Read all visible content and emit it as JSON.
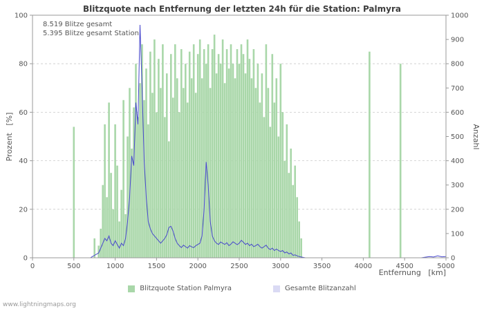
{
  "watermark": "www.lightningmaps.org",
  "colors": {
    "bar": "#a9d7a9",
    "line": "#4545cc",
    "line_legend": "#dadaf4",
    "grid": "#c9c9c9",
    "frame": "#999999",
    "text": "#555555",
    "title": "#3d3d3d"
  },
  "chart_data": {
    "type": "bar",
    "title": "Blitzquote nach Entfernung der letzten 24h für die Station: Palmyra",
    "annotations": [
      "8.519 Blitze gesamt",
      "5.395 Blitze gesamt Station"
    ],
    "xlabel": "Entfernung   [km]",
    "ylabel_left": "Prozent   [%]",
    "ylabel_right": "Anzahl",
    "xlim": [
      0,
      5000
    ],
    "ylim_left": [
      0,
      100
    ],
    "ylim_right": [
      0,
      1000
    ],
    "x_ticks": [
      0,
      500,
      1000,
      1500,
      2000,
      2500,
      3000,
      3500,
      4000,
      4500,
      5000
    ],
    "y_left_ticks": [
      0,
      20,
      40,
      60,
      80,
      100
    ],
    "y_right_ticks": [
      0,
      100,
      200,
      300,
      400,
      500,
      600,
      700,
      800,
      900,
      1000
    ],
    "grid": true,
    "legend_position": "bottom",
    "x": [
      0,
      200,
      400,
      475,
      500,
      525,
      700,
      725,
      750,
      775,
      800,
      825,
      850,
      875,
      900,
      925,
      950,
      975,
      1000,
      1025,
      1050,
      1075,
      1100,
      1125,
      1150,
      1175,
      1200,
      1225,
      1250,
      1275,
      1300,
      1325,
      1350,
      1375,
      1400,
      1425,
      1450,
      1475,
      1500,
      1525,
      1550,
      1575,
      1600,
      1625,
      1650,
      1675,
      1700,
      1725,
      1750,
      1775,
      1800,
      1825,
      1850,
      1875,
      1900,
      1925,
      1950,
      1975,
      2000,
      2025,
      2050,
      2075,
      2100,
      2125,
      2150,
      2175,
      2200,
      2225,
      2250,
      2275,
      2300,
      2325,
      2350,
      2375,
      2400,
      2425,
      2450,
      2475,
      2500,
      2525,
      2550,
      2575,
      2600,
      2625,
      2650,
      2675,
      2700,
      2725,
      2750,
      2775,
      2800,
      2825,
      2850,
      2875,
      2900,
      2925,
      2950,
      2975,
      3000,
      3025,
      3050,
      3075,
      3100,
      3125,
      3150,
      3175,
      3200,
      3225,
      3250,
      3300,
      3500,
      3750,
      4000,
      4050,
      4075,
      4100,
      4400,
      4450,
      4475,
      4700,
      4800,
      4850,
      4900,
      4950,
      5000
    ],
    "series": [
      {
        "name": "Blitzquote Station Palmyra",
        "type": "bar",
        "axis": "left",
        "values": [
          0,
          0,
          0,
          0,
          54,
          0,
          0,
          0,
          8,
          0,
          5,
          12,
          30,
          55,
          25,
          64,
          35,
          20,
          55,
          38,
          15,
          28,
          65,
          18,
          50,
          70,
          45,
          62,
          80,
          58,
          72,
          88,
          65,
          78,
          55,
          85,
          68,
          90,
          60,
          82,
          70,
          88,
          58,
          76,
          48,
          84,
          66,
          88,
          74,
          60,
          86,
          70,
          80,
          64,
          85,
          74,
          88,
          68,
          84,
          90,
          74,
          86,
          80,
          88,
          70,
          86,
          92,
          76,
          84,
          80,
          90,
          72,
          86,
          78,
          88,
          80,
          74,
          86,
          80,
          88,
          84,
          76,
          90,
          82,
          74,
          86,
          70,
          80,
          64,
          76,
          58,
          88,
          70,
          54,
          84,
          64,
          74,
          50,
          80,
          60,
          40,
          55,
          35,
          45,
          30,
          38,
          25,
          15,
          8,
          0,
          0,
          0,
          0,
          0,
          85,
          0,
          0,
          80,
          0,
          0,
          0,
          0,
          0,
          0,
          0
        ]
      },
      {
        "name": "Gesamte Blitzanzahl",
        "type": "line",
        "axis": "right",
        "values": [
          0,
          0,
          0,
          0,
          0,
          0,
          0,
          5,
          10,
          15,
          20,
          40,
          60,
          80,
          70,
          90,
          60,
          50,
          70,
          55,
          40,
          60,
          50,
          80,
          150,
          250,
          420,
          380,
          640,
          550,
          960,
          700,
          400,
          250,
          150,
          120,
          100,
          90,
          80,
          70,
          60,
          70,
          80,
          95,
          125,
          130,
          110,
          80,
          60,
          50,
          42,
          52,
          46,
          40,
          50,
          45,
          42,
          50,
          55,
          60,
          90,
          200,
          395,
          300,
          150,
          90,
          70,
          60,
          55,
          65,
          60,
          55,
          62,
          50,
          56,
          66,
          60,
          54,
          60,
          72,
          64,
          55,
          60,
          50,
          56,
          46,
          50,
          56,
          46,
          40,
          46,
          52,
          40,
          34,
          40,
          30,
          36,
          30,
          26,
          30,
          20,
          24,
          16,
          20,
          10,
          12,
          8,
          5,
          3,
          0,
          0,
          0,
          0,
          0,
          0,
          0,
          0,
          0,
          0,
          0,
          5,
          3,
          8,
          4,
          5
        ]
      }
    ]
  }
}
